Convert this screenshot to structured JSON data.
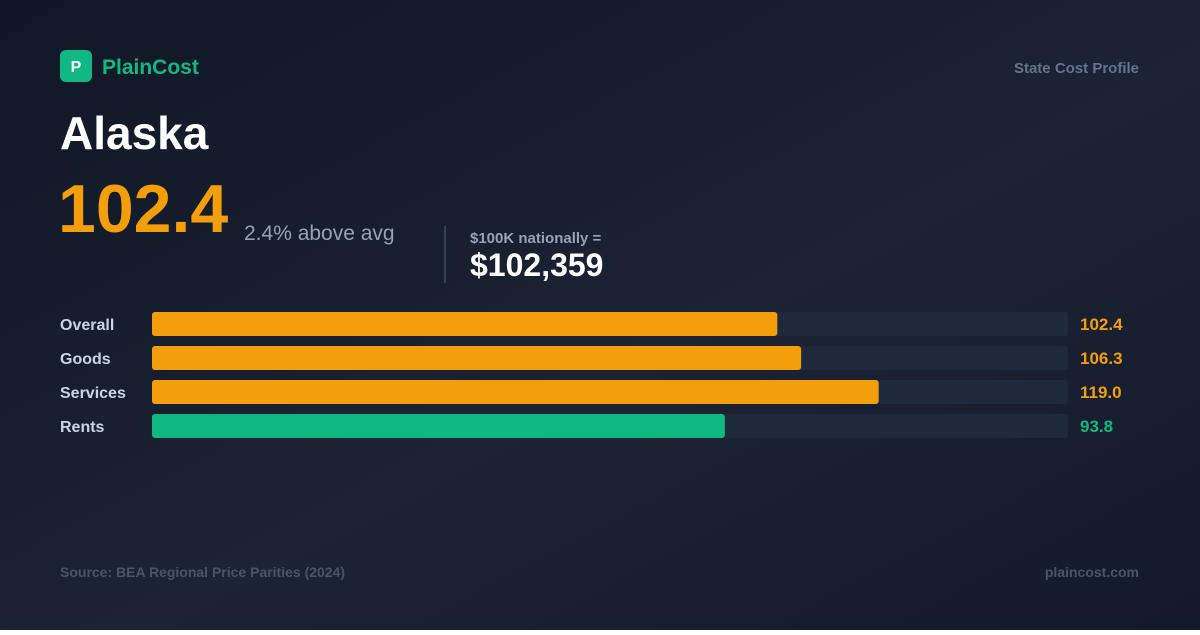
{
  "header": {
    "logo_letter": "P",
    "brand": "PlainCost",
    "tag": "State Cost Profile"
  },
  "state": "Alaska",
  "headline": {
    "index": "102.4",
    "note": "2.4% above avg"
  },
  "equivalent": {
    "label": "$100K nationally =",
    "value": "$102,359"
  },
  "chart_data": {
    "type": "bar",
    "orientation": "horizontal",
    "categories": [
      "Overall",
      "Goods",
      "Services",
      "Rents"
    ],
    "values": [
      102.4,
      106.3,
      119.0,
      93.8
    ],
    "value_labels": [
      "102.4",
      "106.3",
      "119.0",
      "93.8"
    ],
    "colors": [
      "#f59e0b",
      "#f59e0b",
      "#f59e0b",
      "#10b981"
    ],
    "xlim": [
      0,
      150
    ]
  },
  "footer": {
    "source": "Source: BEA Regional Price Parities (2024)",
    "site": "plaincost.com"
  }
}
